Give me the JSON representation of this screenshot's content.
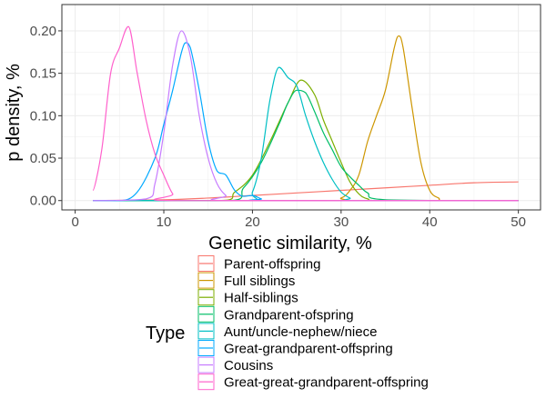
{
  "chart_data": {
    "type": "line",
    "title": "",
    "xlabel": "Genetic similarity, %",
    "ylabel": "p density, %",
    "xlim": [
      0,
      50
    ],
    "ylim": [
      0,
      0.22
    ],
    "x_ticks": [
      0,
      10,
      20,
      30,
      40,
      50
    ],
    "y_ticks": [
      0.0,
      0.05,
      0.1,
      0.15,
      0.2
    ],
    "x_tick_labels": [
      "0",
      "10",
      "20",
      "30",
      "40",
      "50"
    ],
    "y_tick_labels": [
      "0.00",
      "0.05",
      "0.10",
      "0.15",
      "0.20"
    ],
    "grid": true,
    "legend": {
      "title": "Type",
      "position": "bottom"
    },
    "series": [
      {
        "name": "Parent-offspring",
        "color": "#F8766D",
        "x": [
          2,
          10,
          15,
          20,
          25,
          30,
          35,
          40,
          45,
          50
        ],
        "y": [
          0.0,
          0.001,
          0.003,
          0.006,
          0.009,
          0.012,
          0.015,
          0.018,
          0.021,
          0.022
        ]
      },
      {
        "name": "Full siblings",
        "color": "#CD9600",
        "x": [
          2,
          28,
          30,
          31,
          32,
          33,
          34,
          35,
          36,
          36.5,
          37,
          38,
          39,
          40,
          41,
          42,
          50
        ],
        "y": [
          0.0,
          0.0,
          0.003,
          0.012,
          0.03,
          0.07,
          0.1,
          0.13,
          0.18,
          0.194,
          0.18,
          0.11,
          0.045,
          0.012,
          0.003,
          0.0,
          0.0
        ]
      },
      {
        "name": "Half-siblings",
        "color": "#7CAE00",
        "x": [
          2,
          16,
          18,
          20,
          22,
          24,
          25.5,
          27,
          28,
          29,
          30,
          31,
          32,
          33,
          35,
          50
        ],
        "y": [
          0.0,
          0.0,
          0.01,
          0.03,
          0.07,
          0.115,
          0.142,
          0.125,
          0.095,
          0.07,
          0.045,
          0.022,
          0.008,
          0.002,
          0.0,
          0.0
        ]
      },
      {
        "name": "Grandparent-ofspring",
        "color": "#00BE67",
        "x": [
          2,
          17,
          19,
          21,
          23,
          24,
          25,
          26,
          27,
          28,
          29,
          30,
          31,
          32,
          33,
          35,
          50
        ],
        "y": [
          0.0,
          0.0,
          0.015,
          0.045,
          0.09,
          0.115,
          0.13,
          0.127,
          0.105,
          0.08,
          0.06,
          0.04,
          0.028,
          0.018,
          0.009,
          0.001,
          0.0
        ]
      },
      {
        "name": "Aunt/uncle-nephew/niece",
        "color": "#00BFC4",
        "x": [
          2,
          19,
          20,
          21,
          22,
          23,
          24,
          25,
          26,
          27,
          28,
          29,
          30,
          31,
          32,
          50
        ],
        "y": [
          0.0,
          0.0,
          0.01,
          0.05,
          0.12,
          0.157,
          0.145,
          0.135,
          0.1,
          0.07,
          0.045,
          0.025,
          0.01,
          0.003,
          0.0,
          0.0
        ]
      },
      {
        "name": "Great-grandparent-offspring",
        "color": "#00A9FF",
        "x": [
          2,
          5,
          7,
          9,
          10,
          11,
          12,
          12.5,
          13,
          14,
          15,
          16,
          17,
          18,
          19,
          20,
          21,
          22,
          50
        ],
        "y": [
          0.0,
          0.0,
          0.01,
          0.05,
          0.09,
          0.13,
          0.175,
          0.186,
          0.18,
          0.13,
          0.07,
          0.035,
          0.03,
          0.012,
          0.005,
          0.006,
          0.002,
          0.0,
          0.0
        ]
      },
      {
        "name": "Cousins",
        "color": "#C77CFF",
        "x": [
          2,
          8,
          9,
          10,
          11,
          12,
          13,
          14,
          15,
          16,
          17,
          18,
          50
        ],
        "y": [
          0.0,
          0.002,
          0.02,
          0.08,
          0.16,
          0.2,
          0.17,
          0.1,
          0.05,
          0.02,
          0.006,
          0.0,
          0.0
        ]
      },
      {
        "name": "Great-great-grandparent-offspring",
        "color": "#FF61CC",
        "x": [
          2,
          3,
          4,
          5,
          6,
          7,
          8,
          9,
          10,
          11,
          12,
          50
        ],
        "y": [
          0.012,
          0.06,
          0.15,
          0.18,
          0.205,
          0.15,
          0.095,
          0.055,
          0.03,
          0.008,
          0.0,
          0.0
        ]
      }
    ]
  }
}
